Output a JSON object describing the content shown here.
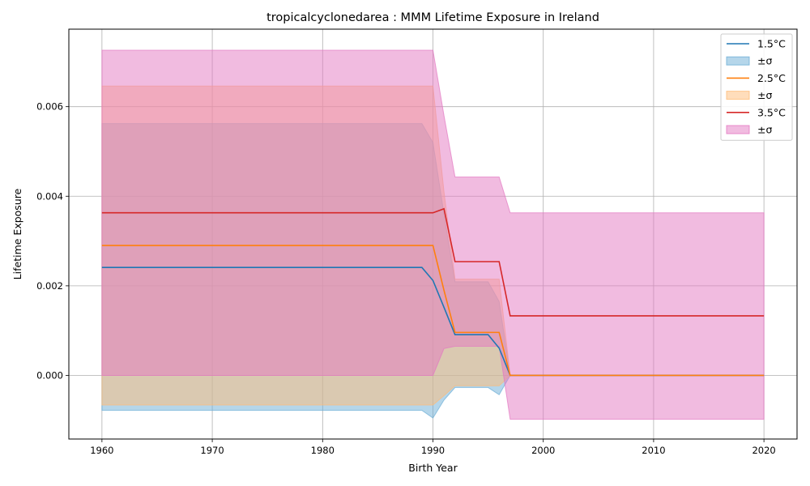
{
  "chart_data": {
    "type": "line",
    "title": "tropicalcyclonedarea : MMM Lifetime Exposure in Ireland",
    "xlabel": "Birth Year",
    "ylabel": "Lifetime Exposure",
    "xlim": [
      1957,
      2023
    ],
    "ylim": [
      -0.00142,
      0.00773
    ],
    "xticks": [
      1960,
      1970,
      1980,
      1990,
      2000,
      2010,
      2020
    ],
    "xtick_labels": [
      "1960",
      "1970",
      "1980",
      "1990",
      "2000",
      "2010",
      "2020"
    ],
    "yticks": [
      0.0,
      0.002,
      0.004,
      0.006
    ],
    "ytick_labels": [
      "0.000",
      "0.002",
      "0.004",
      "0.006"
    ],
    "grid": true,
    "legend_position": "top-right",
    "band_label": "±σ",
    "series": [
      {
        "name": "1.5°C",
        "color": "#1f77b4",
        "band_color": "#6baed6",
        "x": [
          1960,
          1989,
          1990,
          1991,
          1992,
          1995,
          1996,
          1997,
          2020
        ],
        "y": [
          0.00241,
          0.00241,
          0.00212,
          0.00152,
          0.00091,
          0.00091,
          0.00061,
          0.0,
          0.0
        ],
        "lower": [
          -0.00078,
          -0.00078,
          -0.00095,
          -0.00055,
          -0.00027,
          -0.00027,
          -0.00043,
          0.0,
          0.0
        ],
        "upper": [
          0.00562,
          0.00562,
          0.0052,
          0.0036,
          0.00209,
          0.00209,
          0.00165,
          0.0,
          0.0
        ]
      },
      {
        "name": "2.5°C",
        "color": "#ff7f0e",
        "band_color": "#ffbb78",
        "x": [
          1960,
          1989,
          1990,
          1991,
          1992,
          1995,
          1996,
          1997,
          2020
        ],
        "y": [
          0.0029,
          0.0029,
          0.0029,
          0.0019,
          0.00096,
          0.00096,
          0.00096,
          0.0,
          0.0
        ],
        "lower": [
          -0.00066,
          -0.00066,
          -0.00066,
          -0.00045,
          -0.00023,
          -0.00023,
          -0.00023,
          0.0,
          0.0
        ],
        "upper": [
          0.00646,
          0.00646,
          0.00646,
          0.0041,
          0.00215,
          0.00215,
          0.00215,
          0.0,
          0.0
        ]
      },
      {
        "name": "3.5°C",
        "color": "#d62728",
        "band_color": "#e377c2",
        "x": [
          1960,
          1989,
          1990,
          1991,
          1992,
          1995,
          1996,
          1997,
          2020
        ],
        "y": [
          0.00363,
          0.00363,
          0.00363,
          0.00372,
          0.00254,
          0.00254,
          0.00254,
          0.00133,
          0.00133
        ],
        "lower": [
          0.0,
          0.0,
          0.0,
          0.0006,
          0.00065,
          0.00065,
          0.00065,
          -0.00098,
          -0.00098
        ],
        "upper": [
          0.00726,
          0.00726,
          0.00726,
          0.0058,
          0.00443,
          0.00443,
          0.00443,
          0.00363,
          0.00363
        ]
      }
    ]
  }
}
